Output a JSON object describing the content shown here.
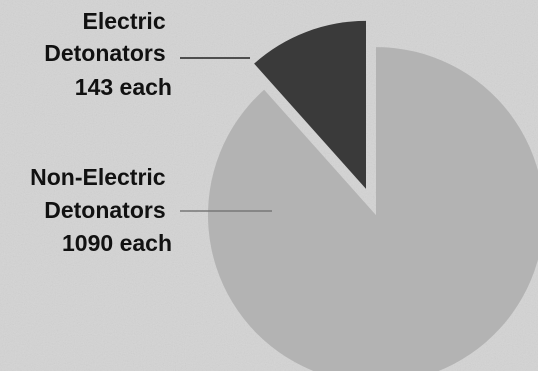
{
  "chart_data": {
    "type": "pie",
    "exploded": "Electric Detonators",
    "slices": [
      {
        "label_lines": [
          "Electric",
          "Detonators",
          "143 each"
        ],
        "value": 143,
        "color": "#3a3a3a"
      },
      {
        "label_lines": [
          "Non-Electric",
          "Detonators",
          "1090 each"
        ],
        "value": 1090,
        "color": "#b3b3b3"
      }
    ],
    "title": "",
    "legend": "none"
  }
}
